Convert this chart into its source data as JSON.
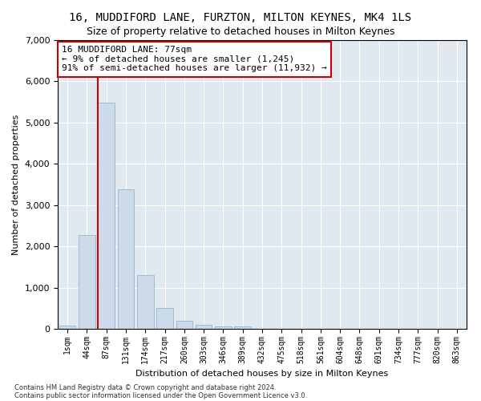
{
  "title": "16, MUDDIFORD LANE, FURZTON, MILTON KEYNES, MK4 1LS",
  "subtitle": "Size of property relative to detached houses in Milton Keynes",
  "xlabel": "Distribution of detached houses by size in Milton Keynes",
  "ylabel": "Number of detached properties",
  "footnote1": "Contains HM Land Registry data © Crown copyright and database right 2024.",
  "footnote2": "Contains public sector information licensed under the Open Government Licence v3.0.",
  "bar_labels": [
    "1sqm",
    "44sqm",
    "87sqm",
    "131sqm",
    "174sqm",
    "217sqm",
    "260sqm",
    "303sqm",
    "346sqm",
    "389sqm",
    "432sqm",
    "475sqm",
    "518sqm",
    "561sqm",
    "604sqm",
    "648sqm",
    "691sqm",
    "734sqm",
    "777sqm",
    "820sqm",
    "863sqm"
  ],
  "bar_values": [
    75,
    2270,
    5480,
    3390,
    1310,
    500,
    190,
    90,
    60,
    55,
    0,
    0,
    0,
    0,
    0,
    0,
    0,
    0,
    0,
    0,
    0
  ],
  "bar_color": "#cddaea",
  "bar_edgecolor": "#92b4cc",
  "vline_color": "#cc0000",
  "vline_x_index": 2,
  "annotation_text": "16 MUDDIFORD LANE: 77sqm\n← 9% of detached houses are smaller (1,245)\n91% of semi-detached houses are larger (11,932) →",
  "ylim": [
    0,
    7000
  ],
  "yticks": [
    0,
    1000,
    2000,
    3000,
    4000,
    5000,
    6000,
    7000
  ],
  "plot_bg_color": "#e0e8f0",
  "grid_color": "#ffffff",
  "title_fontsize": 10,
  "label_fontsize": 8,
  "tick_fontsize": 7,
  "annot_fontsize": 8
}
